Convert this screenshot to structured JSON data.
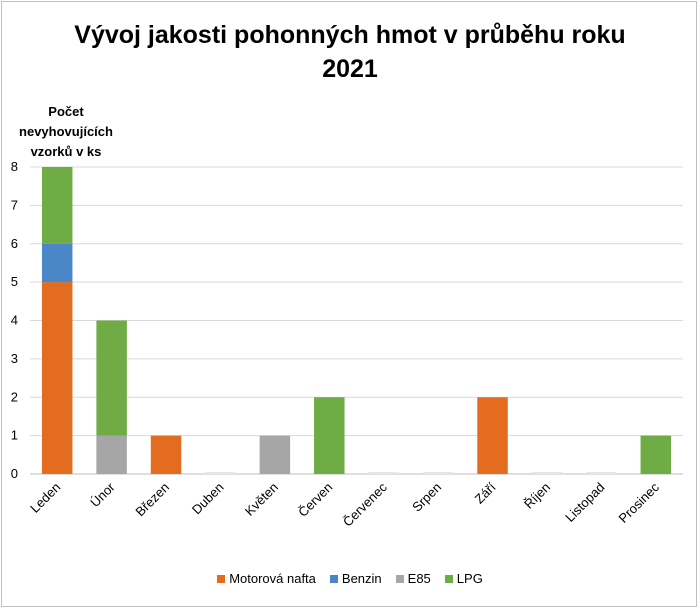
{
  "chart_data": {
    "type": "bar",
    "stacked": true,
    "title_lines": [
      "Vývoj jakosti pohonných hmot v průběhu roku",
      "2021"
    ],
    "ylabel_lines": [
      "Počet",
      "nevyhovujících",
      "vzorků v ks"
    ],
    "xlabel": "",
    "ylim": [
      0,
      8
    ],
    "yticks": [
      "0",
      "1",
      "2",
      "3",
      "4",
      "5",
      "6",
      "7",
      "8"
    ],
    "grid": true,
    "legend_position": "bottom",
    "categories": [
      "Leden",
      "Únor",
      "Březen",
      "Duben",
      "Květen",
      "Červen",
      "Červenec",
      "Srpen",
      "Září",
      "Říjen",
      "Listopad",
      "Prosinec"
    ],
    "series": [
      {
        "name": "Motorová nafta",
        "color": "#e46c1e",
        "values": [
          5,
          0,
          1,
          0,
          0,
          0,
          0,
          0,
          2,
          0,
          0,
          0
        ]
      },
      {
        "name": "Benzin",
        "color": "#4a86c8",
        "values": [
          1,
          0,
          0,
          0,
          0,
          0,
          0,
          0,
          0,
          0,
          0,
          0
        ]
      },
      {
        "name": "E85",
        "color": "#a6a6a6",
        "values": [
          0,
          1,
          0,
          0,
          1,
          0,
          0,
          0,
          0,
          0,
          0,
          0
        ]
      },
      {
        "name": "LPG",
        "color": "#6fac46",
        "values": [
          2,
          3,
          0,
          0,
          0,
          2,
          0,
          0,
          0,
          0,
          0,
          1
        ]
      }
    ]
  }
}
